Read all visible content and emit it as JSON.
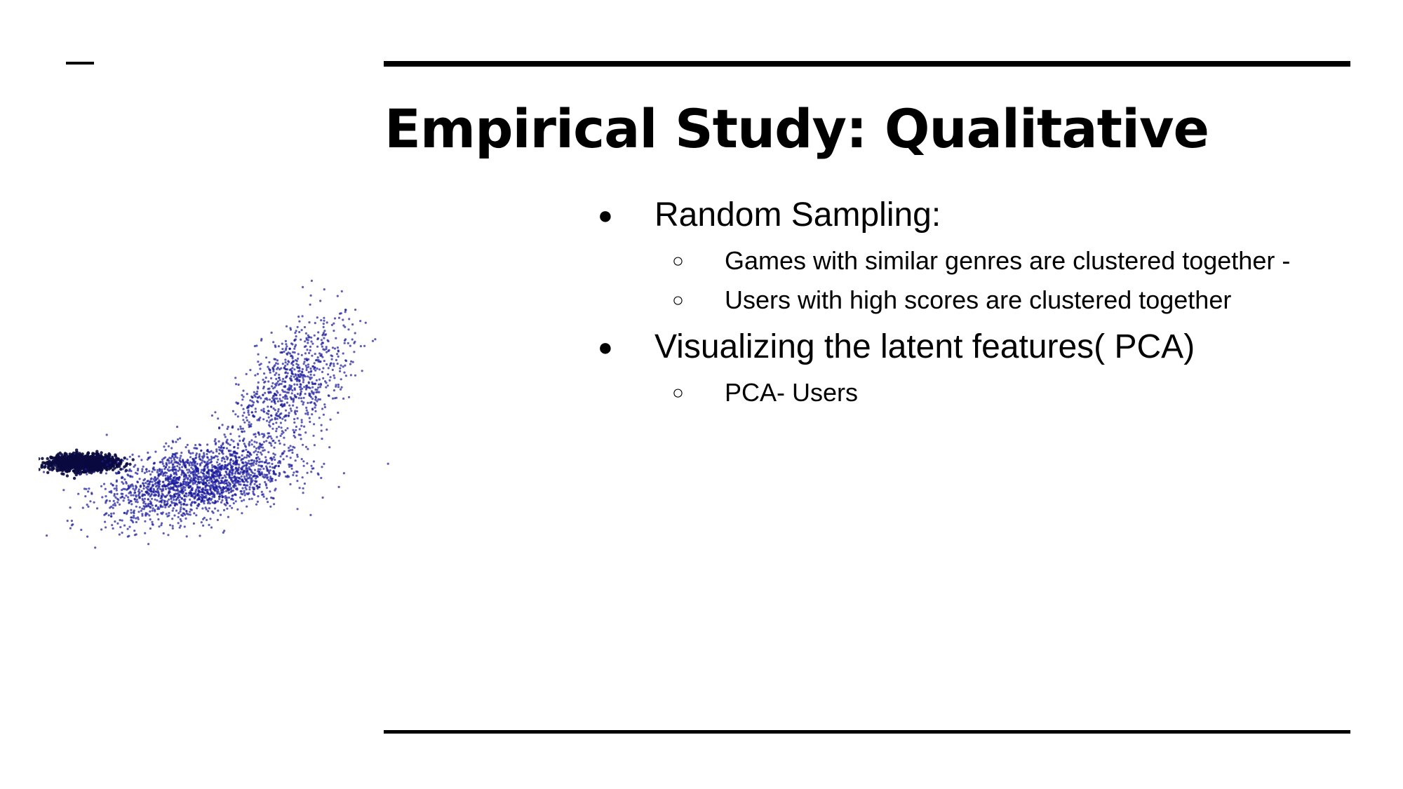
{
  "slide": {
    "title": "Empirical Study: Qualitative",
    "bullets": [
      {
        "text": "Random Sampling:",
        "sub": [
          "Games with similar genres are clustered together -",
          "Users with high scores are  clustered together"
        ]
      },
      {
        "text": "Visualizing the latent features( PCA)",
        "sub": [
          "PCA- Users"
        ]
      }
    ],
    "bullet_glyph": "●",
    "sub_bullet_glyph": "○"
  },
  "chart_data": {
    "type": "scatter",
    "title": "",
    "xlabel": "",
    "ylabel": "",
    "grid": false,
    "legend": "none",
    "point_color": "#1a1a9c",
    "description_clusters": [
      {
        "center": [
          1.0,
          3.7
        ],
        "spread": [
          0.35,
          0.12
        ],
        "share": 0.35
      },
      {
        "center": [
          3.5,
          3.1
        ],
        "spread": [
          1.0,
          0.55
        ],
        "share": 0.45
      },
      {
        "center": [
          5.6,
          6.0
        ],
        "spread": [
          0.55,
          1.1
        ],
        "share": 0.2
      }
    ],
    "xlim": [
      0,
      10
    ],
    "ylim": [
      0,
      10
    ]
  }
}
